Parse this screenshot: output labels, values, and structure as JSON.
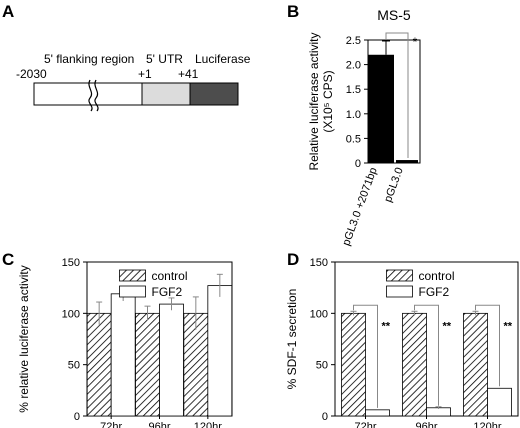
{
  "panels": {
    "A": {
      "letter": "A",
      "labels": {
        "flank": "5' flanking region",
        "utr": "5' UTR",
        "luc": "Luciferase",
        "pos_start": "-2030",
        "pos_p1": "+1",
        "pos_p41": "+41"
      },
      "colors": {
        "flank": "#ffffff",
        "utr": "#dcdcdc",
        "luc": "#4d4d4d"
      }
    },
    "B": {
      "letter": "B"
    },
    "C": {
      "letter": "C"
    },
    "D": {
      "letter": "D"
    }
  },
  "chart_data": [
    {
      "panel": "B",
      "type": "bar",
      "title": "MS-5",
      "ylabel": "Relative luciferase activity",
      "ylabel_sub": "(X10⁵ CPS)",
      "ylim": [
        0,
        2.5
      ],
      "yticks": [
        "0",
        "0.5",
        "1.0",
        "1.5",
        "2.0",
        "2.5"
      ],
      "categories": [
        "pGL3.0 +2071bp",
        "pGL3.0"
      ],
      "values": [
        2.2,
        0.06
      ],
      "errors": [
        0.28,
        0.0
      ],
      "colors": [
        "#000000",
        "#000000"
      ],
      "significance": [
        {
          "between": [
            0,
            1
          ],
          "label": "*"
        }
      ]
    },
    {
      "panel": "C",
      "type": "bar",
      "title": "",
      "ylabel": "% relative luciferase activity",
      "ylim": [
        0,
        150
      ],
      "yticks": [
        "0",
        "50",
        "100",
        "150"
      ],
      "categories": [
        "72hr",
        "96hr",
        "120hr"
      ],
      "legend": {
        "position": "top-center",
        "entries": [
          "control",
          "FGF2"
        ]
      },
      "series": [
        {
          "name": "control",
          "pattern": "hatched",
          "values": [
            100,
            100,
            100
          ],
          "errors": [
            11,
            7,
            16
          ]
        },
        {
          "name": "FGF2",
          "pattern": "open",
          "values": [
            119,
            109,
            127
          ],
          "errors": [
            7,
            6,
            11
          ]
        }
      ]
    },
    {
      "panel": "D",
      "type": "bar",
      "title": "",
      "ylabel": "% SDF-1 secretion",
      "ylim": [
        0,
        150
      ],
      "yticks": [
        "0",
        "50",
        "100",
        "150"
      ],
      "categories": [
        "72hr",
        "96hr",
        "120hr"
      ],
      "legend": {
        "position": "top-center",
        "entries": [
          "control",
          "FGF2"
        ]
      },
      "series": [
        {
          "name": "control",
          "pattern": "hatched",
          "values": [
            100,
            100,
            100
          ],
          "errors": [
            2,
            2,
            2
          ]
        },
        {
          "name": "FGF2",
          "pattern": "open",
          "values": [
            6,
            8,
            27
          ],
          "errors": [
            0,
            1,
            0
          ]
        }
      ],
      "significance": [
        {
          "group": 0,
          "label": "**"
        },
        {
          "group": 1,
          "label": "**"
        },
        {
          "group": 2,
          "label": "**"
        }
      ]
    }
  ]
}
